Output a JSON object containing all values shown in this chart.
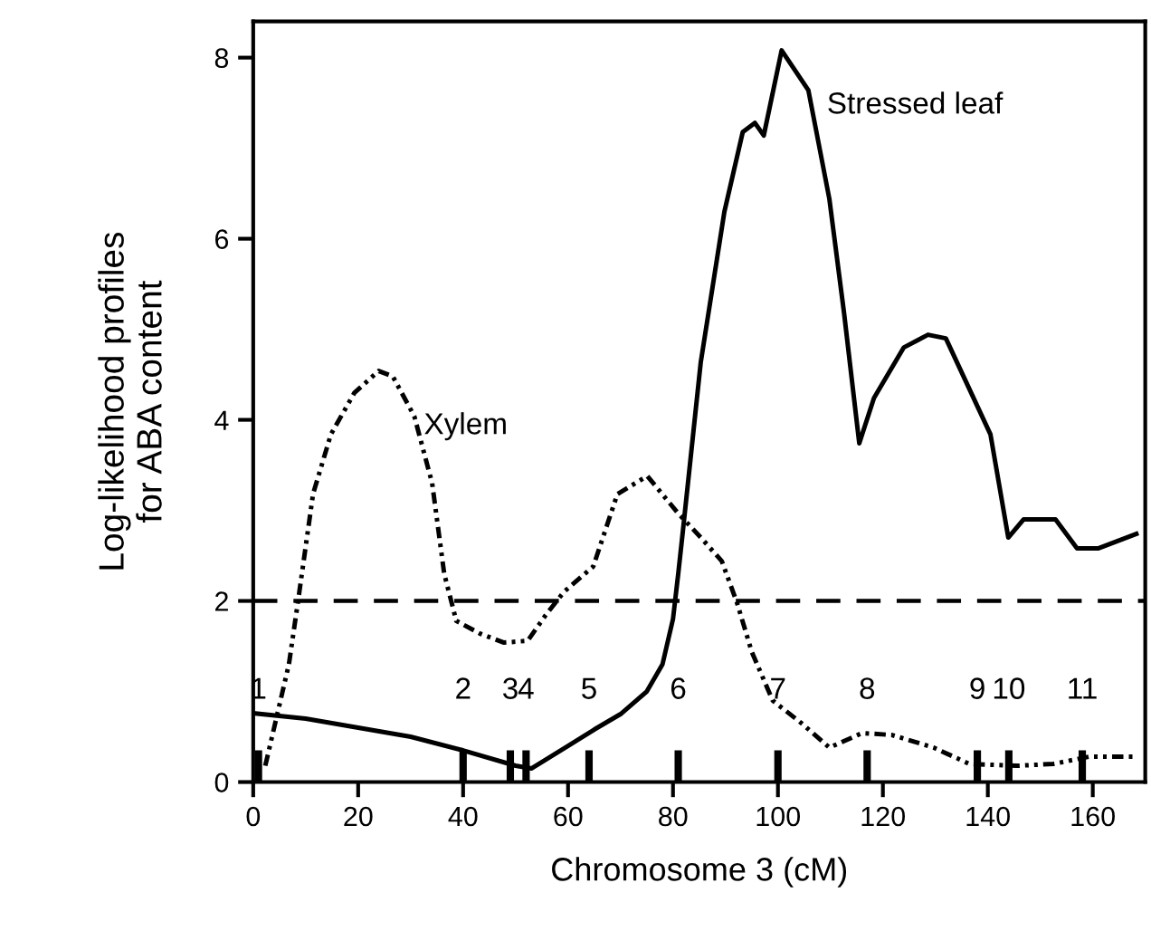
{
  "chart_data": {
    "type": "line",
    "xlabel": "Chromosome 3 (cM)",
    "ylabel": "Log-likelihood profiles\nfor ABA content",
    "xlim": [
      0,
      170
    ],
    "ylim": [
      0,
      8.4
    ],
    "xticks": [
      0,
      20,
      40,
      60,
      80,
      100,
      120,
      140,
      160
    ],
    "yticks": [
      0,
      2,
      4,
      6,
      8
    ],
    "grid": false,
    "legend": false,
    "series": [
      {
        "name": "Xylem",
        "color": "#000000",
        "line_style": "dashdot",
        "x": [
          2.3,
          6.8,
          8.5,
          11.4,
          14.8,
          19.3,
          23.9,
          26.6,
          30.7,
          34.1,
          36.4,
          38.7,
          43.2,
          47.8,
          52.3,
          55.7,
          59.2,
          64.8,
          69.4,
          75.1,
          80.8,
          85.3,
          89.3,
          92.2,
          95,
          99,
          104.7,
          109.8,
          116,
          121.7,
          129.7,
          136.5,
          145.6,
          152.5,
          159.3,
          168.3
        ],
        "values": [
          0.18,
          1.3,
          1.98,
          3.18,
          3.84,
          4.3,
          4.54,
          4.48,
          4.04,
          3.3,
          2.3,
          1.78,
          1.64,
          1.54,
          1.56,
          1.84,
          2.1,
          2.38,
          3.18,
          3.38,
          2.98,
          2.7,
          2.44,
          1.98,
          1.44,
          0.9,
          0.64,
          0.38,
          0.54,
          0.52,
          0.38,
          0.2,
          0.18,
          0.2,
          0.28,
          0.28
        ]
      },
      {
        "name": "Stressed leaf",
        "color": "#000000",
        "line_style": "solid",
        "x": [
          0,
          10,
          20,
          30,
          40,
          50,
          53,
          60,
          65,
          70,
          75,
          78,
          80,
          81,
          81.9,
          85.3,
          89.8,
          93.3,
          95.6,
          97.3,
          100.7,
          105.8,
          109.8,
          112.6,
          115.5,
          118.3,
          124,
          128.6,
          132,
          140.5,
          143.9,
          146.8,
          152.9,
          157,
          161,
          168.3
        ],
        "values": [
          0.76,
          0.7,
          0.6,
          0.5,
          0.35,
          0.18,
          0.15,
          0.4,
          0.58,
          0.75,
          1.0,
          1.3,
          1.8,
          2.3,
          2.78,
          4.64,
          6.3,
          7.18,
          7.28,
          7.14,
          8.08,
          7.64,
          6.44,
          5.18,
          3.74,
          4.24,
          4.8,
          4.94,
          4.9,
          3.84,
          2.7,
          2.9,
          2.9,
          2.58,
          2.58,
          2.74
        ]
      },
      {
        "type": "bar",
        "color": "#000000",
        "x": [
          1,
          40,
          49,
          52,
          64,
          81,
          100,
          117,
          138,
          144,
          158
        ],
        "values": [
          0.35,
          0.35,
          0.35,
          0.35,
          0.35,
          0.35,
          0.35,
          0.35,
          0.35,
          0.35,
          0.35
        ]
      }
    ],
    "annotations": [
      {
        "text": "1",
        "x": 1,
        "y": 0.35
      },
      {
        "text": "2",
        "x": 40,
        "y": 0.35
      },
      {
        "text": "3",
        "x": 49,
        "y": 0.35
      },
      {
        "text": "4",
        "x": 52,
        "y": 0.35
      },
      {
        "text": "5",
        "x": 64,
        "y": 0.35
      },
      {
        "text": "6",
        "x": 81,
        "y": 0.35
      },
      {
        "text": "7",
        "x": 100,
        "y": 0.35
      },
      {
        "text": "8",
        "x": 117,
        "y": 0.35
      },
      {
        "text": "9",
        "x": 138,
        "y": 0.35
      },
      {
        "text": "10",
        "x": 144,
        "y": 0.35
      },
      {
        "text": "11",
        "x": 158,
        "y": 0.35
      }
    ],
    "ref_lines": [
      {
        "axis": "y",
        "value": 2,
        "color": "#000000",
        "line_style": "dashed"
      }
    ]
  }
}
